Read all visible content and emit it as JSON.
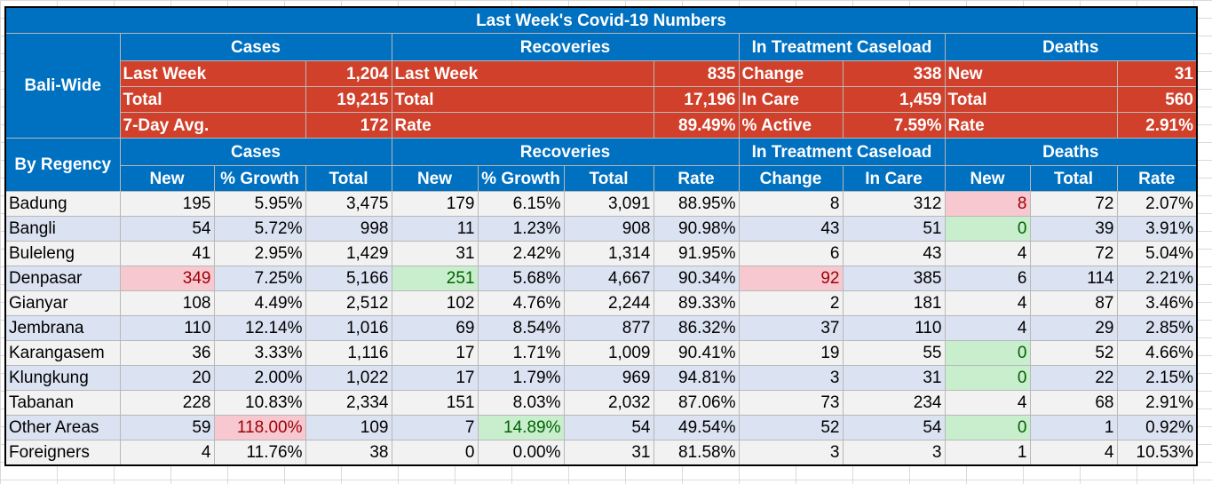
{
  "title": "Last Week's Covid-19 Numbers",
  "groups": {
    "cases": "Cases",
    "recoveries": "Recoveries",
    "treatment": "In Treatment Caseload",
    "deaths": "Deaths"
  },
  "bali_wide": {
    "label": "Bali-Wide",
    "rows": [
      [
        "Last Week",
        "1,204",
        "Last Week",
        "835",
        "Change",
        "338",
        "New",
        "31"
      ],
      [
        "Total",
        "19,215",
        "Total",
        "17,196",
        "In Care",
        "1,459",
        "Total",
        "560"
      ],
      [
        "7-Day Avg.",
        "172",
        "Rate",
        "89.49%",
        "% Active",
        "7.59%",
        "Rate",
        "2.91%"
      ]
    ]
  },
  "by_regency": {
    "label": "By Regency",
    "sub_headers": [
      "New",
      "% Growth",
      "Total",
      "New",
      "% Growth",
      "Total",
      "Rate",
      "Change",
      "In Care",
      "New",
      "Total",
      "Rate"
    ],
    "rows": [
      {
        "name": "Badung",
        "v": [
          "195",
          "5.95%",
          "3,475",
          "179",
          "6.15%",
          "3,091",
          "88.95%",
          "8",
          "312",
          "8",
          "72",
          "2.07%"
        ]
      },
      {
        "name": "Bangli",
        "v": [
          "54",
          "5.72%",
          "998",
          "11",
          "1.23%",
          "908",
          "90.98%",
          "43",
          "51",
          "0",
          "39",
          "3.91%"
        ]
      },
      {
        "name": "Buleleng",
        "v": [
          "41",
          "2.95%",
          "1,429",
          "31",
          "2.42%",
          "1,314",
          "91.95%",
          "6",
          "43",
          "4",
          "72",
          "5.04%"
        ]
      },
      {
        "name": "Denpasar",
        "v": [
          "349",
          "7.25%",
          "5,166",
          "251",
          "5.68%",
          "4,667",
          "90.34%",
          "92",
          "385",
          "6",
          "114",
          "2.21%"
        ]
      },
      {
        "name": "Gianyar",
        "v": [
          "108",
          "4.49%",
          "2,512",
          "102",
          "4.76%",
          "2,244",
          "89.33%",
          "2",
          "181",
          "4",
          "87",
          "3.46%"
        ]
      },
      {
        "name": "Jembrana",
        "v": [
          "110",
          "12.14%",
          "1,016",
          "69",
          "8.54%",
          "877",
          "86.32%",
          "37",
          "110",
          "4",
          "29",
          "2.85%"
        ]
      },
      {
        "name": "Karangasem",
        "v": [
          "36",
          "3.33%",
          "1,116",
          "17",
          "1.71%",
          "1,009",
          "90.41%",
          "19",
          "55",
          "0",
          "52",
          "4.66%"
        ]
      },
      {
        "name": "Klungkung",
        "v": [
          "20",
          "2.00%",
          "1,022",
          "17",
          "1.79%",
          "969",
          "94.81%",
          "3",
          "31",
          "0",
          "22",
          "2.15%"
        ]
      },
      {
        "name": "Tabanan",
        "v": [
          "228",
          "10.83%",
          "2,334",
          "151",
          "8.03%",
          "2,032",
          "87.06%",
          "73",
          "234",
          "4",
          "68",
          "2.91%"
        ]
      },
      {
        "name": "Other Areas",
        "v": [
          "59",
          "118.00%",
          "109",
          "7",
          "14.89%",
          "54",
          "49.54%",
          "52",
          "54",
          "0",
          "1",
          "0.92%"
        ]
      },
      {
        "name": "Foreigners",
        "v": [
          "4",
          "11.76%",
          "38",
          "0",
          "0.00%",
          "31",
          "81.58%",
          "3",
          "3",
          "1",
          "4",
          "10.53%"
        ]
      }
    ]
  },
  "highlights": {
    "red_hex": "#f7c8cf",
    "green_hex": "#c9eece",
    "red": [
      [
        0,
        9
      ],
      [
        3,
        0
      ],
      [
        3,
        7
      ]
    ],
    "green": [
      [
        1,
        9
      ],
      [
        3,
        3
      ],
      [
        6,
        9
      ],
      [
        7,
        9
      ],
      [
        9,
        4
      ],
      [
        9,
        9
      ]
    ],
    "red_growth": [
      [
        9,
        1
      ]
    ]
  }
}
